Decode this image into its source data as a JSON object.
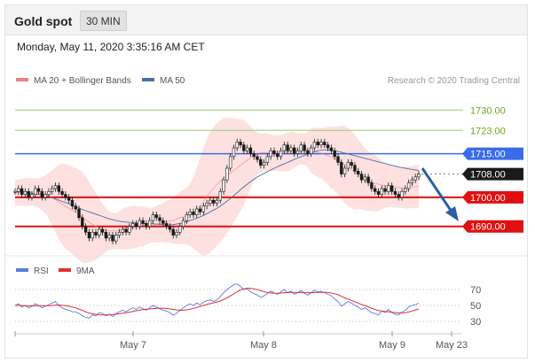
{
  "header": {
    "title": "Gold spot",
    "timeframe_label": "30 MIN"
  },
  "timestamp": "Monday, May 11, 2020 3:35:16 AM CET",
  "legend": {
    "bollinger_label": "MA 20 + Bollinger Bands",
    "ma50_label": "MA 50",
    "copyright": "Research © 2020 Trading Central"
  },
  "rsi_legend": {
    "rsi_label": "RSI",
    "ma_label": "9MA"
  },
  "colors": {
    "bollinger": "#f08080",
    "band_fill": "#fde0e0",
    "ma50": "#4a6fa5",
    "candle": "#1a1a1a",
    "green_level": "#9acd6a",
    "blue_level": "#3a6be8",
    "red_level": "#e01010",
    "arrow": "#2a5fa8",
    "rsi": "#5a7be0",
    "rsi_ma": "#e03030",
    "current_price": "#1a1a1a"
  },
  "chart_data": [
    {
      "type": "candlestick",
      "title": "Gold spot",
      "timeframe": "30 MIN",
      "x_tick_labels": [
        "May 7",
        "May 8",
        "May 9",
        "May 23"
      ],
      "ylim": [
        1682,
        1738
      ],
      "price_levels": [
        {
          "label": "1730.00",
          "value": 1730,
          "kind": "resistance-green"
        },
        {
          "label": "1723.00",
          "value": 1723,
          "kind": "resistance-green"
        },
        {
          "label": "1715.00",
          "value": 1715,
          "kind": "blue-pivot"
        },
        {
          "label": "1708.00",
          "value": 1708,
          "kind": "current"
        },
        {
          "label": "1700.00",
          "value": 1700,
          "kind": "support-red"
        },
        {
          "label": "1690.00",
          "value": 1690,
          "kind": "support-red"
        }
      ],
      "closes": [
        1702,
        1703,
        1701,
        1702,
        1700,
        1701,
        1703,
        1702,
        1700,
        1701,
        1702,
        1703,
        1704,
        1702,
        1701,
        1700,
        1699,
        1697,
        1696,
        1693,
        1690,
        1688,
        1686,
        1688,
        1687,
        1689,
        1688,
        1686,
        1687,
        1685,
        1687,
        1688,
        1689,
        1688,
        1690,
        1691,
        1690,
        1692,
        1691,
        1690,
        1692,
        1694,
        1693,
        1692,
        1691,
        1690,
        1689,
        1687,
        1688,
        1690,
        1692,
        1694,
        1695,
        1694,
        1696,
        1695,
        1697,
        1698,
        1699,
        1698,
        1699,
        1702,
        1706,
        1710,
        1714,
        1717,
        1719,
        1718,
        1716,
        1717,
        1715,
        1714,
        1713,
        1711,
        1712,
        1714,
        1716,
        1715,
        1714,
        1716,
        1718,
        1716,
        1717,
        1715,
        1716,
        1718,
        1716,
        1715,
        1717,
        1719,
        1718,
        1719,
        1718,
        1717,
        1716,
        1714,
        1712,
        1708,
        1710,
        1712,
        1711,
        1709,
        1708,
        1706,
        1707,
        1705,
        1703,
        1702,
        1701,
        1703,
        1702,
        1704,
        1702,
        1701,
        1700,
        1702,
        1703,
        1705,
        1706,
        1707,
        1708
      ],
      "ma50": [
        1702,
        1702,
        1702,
        1701.8,
        1701.6,
        1701.4,
        1701.2,
        1701,
        1700.8,
        1700.6,
        1700.3,
        1700,
        1699.5,
        1699,
        1698.6,
        1698.2,
        1697.8,
        1697.3,
        1696.8,
        1696.3,
        1695.8,
        1695.4,
        1695,
        1694.6,
        1694.2,
        1693.8,
        1693.4,
        1693,
        1692.6,
        1692.3,
        1692,
        1691.8,
        1691.6,
        1691.5,
        1691.4,
        1691.3,
        1691.2,
        1691.1,
        1691,
        1691,
        1691,
        1690.9,
        1690.8,
        1690.7,
        1690.6,
        1690.5,
        1690.5,
        1690.6,
        1690.8,
        1691,
        1691.3,
        1691.6,
        1692,
        1692.4,
        1692.8,
        1693.3,
        1693.8,
        1694.4,
        1695,
        1695.6,
        1696.2,
        1697,
        1697.8,
        1698.7,
        1699.6,
        1700.6,
        1701.6,
        1702.6,
        1703.6,
        1704.5,
        1705.4,
        1706.2,
        1707,
        1707.6,
        1708.2,
        1708.8,
        1709.4,
        1710,
        1710.5,
        1711,
        1711.5,
        1712,
        1712.5,
        1713,
        1713.5,
        1714,
        1714.4,
        1714.8,
        1715.2,
        1715.6,
        1716,
        1716.2,
        1716.3,
        1716.3,
        1716.2,
        1716,
        1715.8,
        1715.5,
        1715.2,
        1714.9,
        1714.6,
        1714.3,
        1714,
        1713.7,
        1713.4,
        1713.1,
        1712.8,
        1712.5,
        1712.2,
        1711.9,
        1711.6,
        1711.3,
        1711,
        1710.7,
        1710.4,
        1710.2,
        1710,
        1709.8,
        1709.6,
        1709.4,
        1709.2
      ]
    },
    {
      "type": "line",
      "title": "RSI",
      "series": [
        {
          "name": "RSI"
        },
        {
          "name": "9MA"
        }
      ],
      "y_tick_labels": [
        "70",
        "50",
        "30"
      ],
      "ylim": [
        20,
        80
      ],
      "rsi": [
        50,
        52,
        48,
        50,
        47,
        49,
        52,
        50,
        47,
        49,
        51,
        53,
        55,
        50,
        47,
        45,
        44,
        42,
        42,
        40,
        37,
        35,
        34,
        38,
        37,
        41,
        40,
        37,
        39,
        36,
        40,
        42,
        44,
        42,
        45,
        47,
        45,
        48,
        46,
        44,
        47,
        50,
        48,
        46,
        44,
        43,
        41,
        38,
        40,
        44,
        47,
        50,
        52,
        50,
        53,
        51,
        54,
        56,
        57,
        55,
        57,
        61,
        66,
        70,
        73,
        76,
        77,
        74,
        70,
        71,
        67,
        65,
        63,
        60,
        62,
        65,
        68,
        66,
        64,
        67,
        70,
        66,
        68,
        64,
        66,
        69,
        65,
        63,
        66,
        69,
        67,
        68,
        66,
        64,
        62,
        58,
        55,
        49,
        52,
        55,
        53,
        50,
        48,
        45,
        47,
        44,
        41,
        40,
        38,
        43,
        41,
        45,
        41,
        39,
        38,
        42,
        44,
        48,
        50,
        51,
        53
      ],
      "rsi_ma": [
        50,
        50,
        50,
        49.8,
        49.6,
        49.4,
        49.6,
        49.8,
        49.8,
        49.6,
        49.6,
        50,
        50.4,
        50.6,
        50.3,
        49.7,
        49,
        48,
        47,
        45.5,
        43.8,
        42,
        40.5,
        39.5,
        38.8,
        38.2,
        38,
        38,
        38.3,
        38.6,
        39,
        39.6,
        40.2,
        40.8,
        41.5,
        42.4,
        43.3,
        44.1,
        44.8,
        45.2,
        45.6,
        46,
        46.4,
        46.6,
        46.5,
        46.2,
        45.6,
        45,
        44.4,
        44,
        44,
        44.4,
        45.2,
        46.3,
        47.5,
        48.8,
        50,
        51.2,
        52.3,
        53.3,
        54.3,
        55.6,
        57.4,
        59.6,
        62,
        64.6,
        67.2,
        69.4,
        70.8,
        71.5,
        71.4,
        70.8,
        69.8,
        68.4,
        67.2,
        66.3,
        65.8,
        65.5,
        65.3,
        65.6,
        66,
        66.2,
        66.4,
        66.3,
        66.2,
        66.3,
        66.2,
        66,
        66,
        66.2,
        66.3,
        66.4,
        66.5,
        66.2,
        65.7,
        64.7,
        63.4,
        61.4,
        59.5,
        57.9,
        56.3,
        54.6,
        53,
        51.2,
        49.8,
        48.2,
        46.6,
        45,
        43.6,
        43,
        42.3,
        42.1,
        41.5,
        41.1,
        40.6,
        40.6,
        40.8,
        41.8,
        43,
        44.3,
        45.8
      ]
    }
  ]
}
